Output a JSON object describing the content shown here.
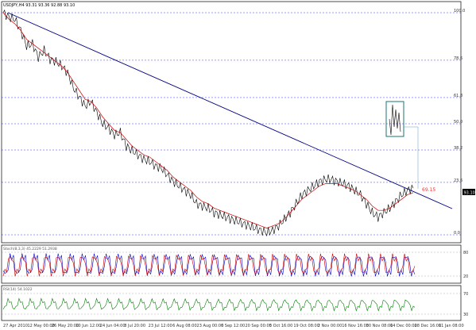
{
  "header": {
    "symbol_info": "USDJPY,H4  93.31 93.36 92.88 93.10"
  },
  "chart_data": {
    "type": "line",
    "price_axis": [
      {
        "label": "100.0",
        "value": 100
      },
      {
        "label": "78.6",
        "value": 78.6
      },
      {
        "label": "61.8",
        "value": 61.8
      },
      {
        "label": "50.0",
        "value": 50
      },
      {
        "label": "38.2",
        "value": 38.2
      },
      {
        "label": "23.6",
        "value": 23.6
      },
      {
        "label": "0.0",
        "value": 0
      }
    ],
    "current_price": "93.10",
    "annotation": "69.15",
    "x_ticks": [
      "27 Apr 2010",
      "12 May 00:00",
      "26 May 20:00",
      "10 Jun 12:00",
      "24 Jun 04:00",
      "8 Jul 20:00",
      "23 Jul 12:00",
      "6 Aug 08:00",
      "23 Aug 00:00",
      "6 Sep 12:00",
      "20 Sep 00:00",
      "5 Oct 16:00",
      "19 Oct 08:00",
      "2 Nov 00:00",
      "16 Nov 16:00",
      "30 Nov 08:00",
      "14 Dec 00:00",
      "28 Dec 16:00",
      "11 Jan 08:00"
    ],
    "series": [
      {
        "values": [
          100,
          98,
          97,
          92,
          85,
          86,
          80,
          83,
          79,
          78,
          76,
          73,
          66,
          62,
          58,
          60,
          55,
          50,
          48,
          45,
          46,
          40,
          38,
          36,
          34,
          33,
          31,
          30,
          27,
          24,
          22,
          20,
          18,
          14,
          13,
          12,
          10,
          9,
          8,
          7,
          6,
          5,
          4,
          3,
          2,
          1,
          2,
          4,
          7,
          10,
          14,
          18,
          20,
          22,
          24,
          25,
          25,
          24,
          23,
          22,
          20,
          18,
          14,
          10,
          8,
          10,
          12,
          15,
          18,
          20,
          21
        ]
      },
      {
        "values": [
          100,
          97,
          95,
          92,
          88,
          86,
          84,
          82,
          80,
          78,
          76,
          73,
          69,
          65,
          61,
          60,
          57,
          53,
          50,
          47,
          46,
          43,
          40,
          38,
          36,
          35,
          33,
          31,
          29,
          26,
          24,
          22,
          20,
          17,
          15,
          14,
          12,
          11,
          10,
          9,
          8,
          7,
          6,
          5,
          4,
          3,
          4,
          5,
          7,
          10,
          13,
          16,
          18,
          20,
          22,
          23,
          23,
          23,
          22,
          21,
          20,
          18,
          16,
          13,
          11,
          11,
          12,
          14,
          16,
          18,
          19
        ]
      }
    ]
  },
  "indicators": {
    "stoch": {
      "title": "Stoch(8,3,3)  45.2229  51.2938",
      "levels": [
        {
          "label": "80"
        },
        {
          "label": "20"
        }
      ]
    },
    "rsi": {
      "title": "RSI(14)  54.1022",
      "levels": [
        {
          "label": "70"
        },
        {
          "label": "30"
        }
      ]
    }
  },
  "colors": {
    "background": "#ffffff",
    "price_line": "#000000",
    "ma_line": "#cc0000",
    "trend_line": "#000080",
    "fib_line": "#0000ff",
    "inset_box": "#006666",
    "stoch_main": "#0000cc",
    "stoch_signal": "#cc0000",
    "rsi_line": "#008000",
    "annotation": "#ff3333"
  }
}
